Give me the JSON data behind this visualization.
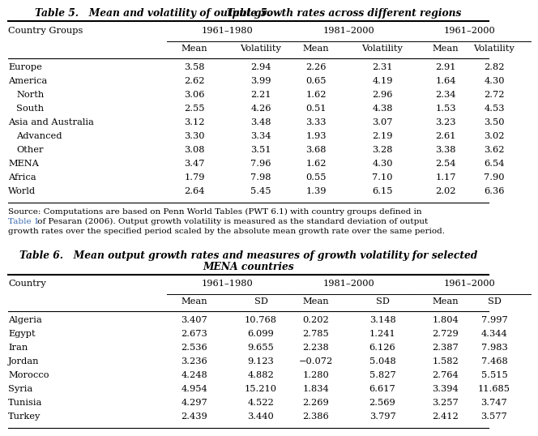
{
  "table5": {
    "title_bold": "Table 5.",
    "title_rest": "   Mean and volatility of output growth rates across different regions",
    "col_groups": [
      "1961–1980",
      "1981–2000",
      "1961–2000"
    ],
    "col_headers": [
      "Mean",
      "Volatility",
      "Mean",
      "Volatility",
      "Mean",
      "Volatility"
    ],
    "row_label_header": "Country Groups",
    "rows": [
      [
        "Europe",
        "3.58",
        "2.94",
        "2.26",
        "2.31",
        "2.91",
        "2.82"
      ],
      [
        "America",
        "2.62",
        "3.99",
        "0.65",
        "4.19",
        "1.64",
        "4.30"
      ],
      [
        "  North",
        "3.06",
        "2.21",
        "1.62",
        "2.96",
        "2.34",
        "2.72"
      ],
      [
        "  South",
        "2.55",
        "4.26",
        "0.51",
        "4.38",
        "1.53",
        "4.53"
      ],
      [
        "Asia and Australia",
        "3.12",
        "3.48",
        "3.33",
        "3.07",
        "3.23",
        "3.50"
      ],
      [
        "  Advanced",
        "3.30",
        "3.34",
        "1.93",
        "2.19",
        "2.61",
        "3.02"
      ],
      [
        "  Other",
        "3.08",
        "3.51",
        "3.68",
        "3.28",
        "3.38",
        "3.62"
      ],
      [
        "MENA",
        "3.47",
        "7.96",
        "1.62",
        "4.30",
        "2.54",
        "6.54"
      ],
      [
        "Africa",
        "1.79",
        "7.98",
        "0.55",
        "7.10",
        "1.17",
        "7.90"
      ],
      [
        "World",
        "2.64",
        "5.45",
        "1.39",
        "6.15",
        "2.02",
        "6.36"
      ]
    ],
    "source_line1": "Source: Computations are based on Penn World Tables (PWT 6.1) with country groups defined in",
    "source_line2_link": "Table 1",
    "source_line2_rest": " of Pesaran (2006). Output growth volatility is measured as the standard deviation of output",
    "source_line3": "growth rates over the specified period scaled by the absolute mean growth rate over the same period."
  },
  "table6": {
    "title_bold": "Table 6.",
    "title_rest_line1": "   Mean output growth rates and measures of growth volatility for selected",
    "title_line2": "MENA countries",
    "col_groups": [
      "1961–1980",
      "1981–2000",
      "1961–2000"
    ],
    "col_headers": [
      "Mean",
      "SD",
      "Mean",
      "SD",
      "Mean",
      "SD"
    ],
    "row_label_header": "Country",
    "rows": [
      [
        "Algeria",
        "3.407",
        "10.768",
        "0.202",
        "3.148",
        "1.804",
        "7.997"
      ],
      [
        "Egypt",
        "2.673",
        "6.099",
        "2.785",
        "1.241",
        "2.729",
        "4.344"
      ],
      [
        "Iran",
        "2.536",
        "9.655",
        "2.238",
        "6.126",
        "2.387",
        "7.983"
      ],
      [
        "Jordan",
        "3.236",
        "9.123",
        "−0.072",
        "5.048",
        "1.582",
        "7.468"
      ],
      [
        "Morocco",
        "4.248",
        "4.882",
        "1.280",
        "5.827",
        "2.764",
        "5.515"
      ],
      [
        "Syria",
        "4.954",
        "15.210",
        "1.834",
        "6.617",
        "3.394",
        "11.685"
      ],
      [
        "Tunisia",
        "4.297",
        "4.522",
        "2.269",
        "2.569",
        "3.257",
        "3.747"
      ],
      [
        "Turkey",
        "2.439",
        "3.440",
        "2.386",
        "3.797",
        "2.412",
        "3.577"
      ]
    ]
  },
  "bg_color": "#ffffff",
  "text_color": "#000000",
  "link_color": "#3a6ab0",
  "title_fontsize": 8.8,
  "header_fontsize": 8.2,
  "body_fontsize": 8.2,
  "source_fontsize": 7.5
}
